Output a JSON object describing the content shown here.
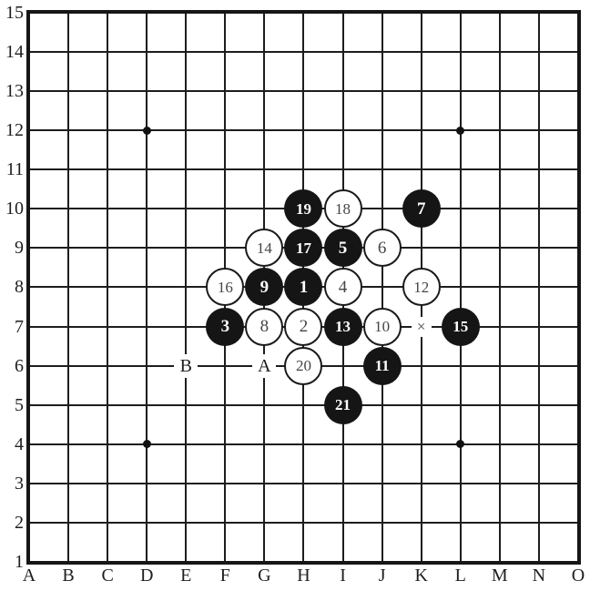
{
  "board": {
    "size": 15,
    "column_labels": [
      "A",
      "B",
      "C",
      "D",
      "E",
      "F",
      "G",
      "H",
      "I",
      "J",
      "K",
      "L",
      "M",
      "N",
      "O"
    ],
    "row_labels": [
      "15",
      "14",
      "13",
      "12",
      "11",
      "10",
      "9",
      "8",
      "7",
      "6",
      "5",
      "4",
      "3",
      "2",
      "1"
    ],
    "star_points": [
      {
        "col": "D",
        "row": 12
      },
      {
        "col": "L",
        "row": 12
      },
      {
        "col": "D",
        "row": 4
      },
      {
        "col": "L",
        "row": 4
      }
    ],
    "stones": [
      {
        "num": "1",
        "color": "black",
        "col": "H",
        "row": 8
      },
      {
        "num": "2",
        "color": "white",
        "col": "H",
        "row": 7
      },
      {
        "num": "3",
        "color": "black",
        "col": "F",
        "row": 7
      },
      {
        "num": "4",
        "color": "white",
        "col": "I",
        "row": 8
      },
      {
        "num": "5",
        "color": "black",
        "col": "I",
        "row": 9
      },
      {
        "num": "6",
        "color": "white",
        "col": "J",
        "row": 9
      },
      {
        "num": "7",
        "color": "black",
        "col": "K",
        "row": 10
      },
      {
        "num": "8",
        "color": "white",
        "col": "G",
        "row": 7
      },
      {
        "num": "9",
        "color": "black",
        "col": "G",
        "row": 8
      },
      {
        "num": "10",
        "color": "white",
        "col": "J",
        "row": 7
      },
      {
        "num": "11",
        "color": "black",
        "col": "J",
        "row": 6
      },
      {
        "num": "12",
        "color": "white",
        "col": "K",
        "row": 8
      },
      {
        "num": "13",
        "color": "black",
        "col": "I",
        "row": 7
      },
      {
        "num": "14",
        "color": "white",
        "col": "G",
        "row": 9
      },
      {
        "num": "15",
        "color": "black",
        "col": "L",
        "row": 7
      },
      {
        "num": "16",
        "color": "white",
        "col": "F",
        "row": 8
      },
      {
        "num": "17",
        "color": "black",
        "col": "H",
        "row": 9
      },
      {
        "num": "18",
        "color": "white",
        "col": "I",
        "row": 10
      },
      {
        "num": "19",
        "color": "black",
        "col": "H",
        "row": 10
      },
      {
        "num": "20",
        "color": "white",
        "col": "H",
        "row": 6
      },
      {
        "num": "21",
        "color": "black",
        "col": "I",
        "row": 5
      }
    ],
    "markers": [
      {
        "label": "B",
        "type": "letter",
        "col": "E",
        "row": 6
      },
      {
        "label": "A",
        "type": "letter",
        "col": "G",
        "row": 6
      },
      {
        "label": "×",
        "type": "cross",
        "col": "K",
        "row": 7
      }
    ],
    "colors": {
      "background": "#ffffff",
      "line": "#1d1d1d",
      "black_stone": "#151515",
      "white_stone": "#ffffff",
      "white_stone_number": "#454545",
      "black_stone_number": "#ffffff",
      "label": "#1e1e1e"
    }
  }
}
